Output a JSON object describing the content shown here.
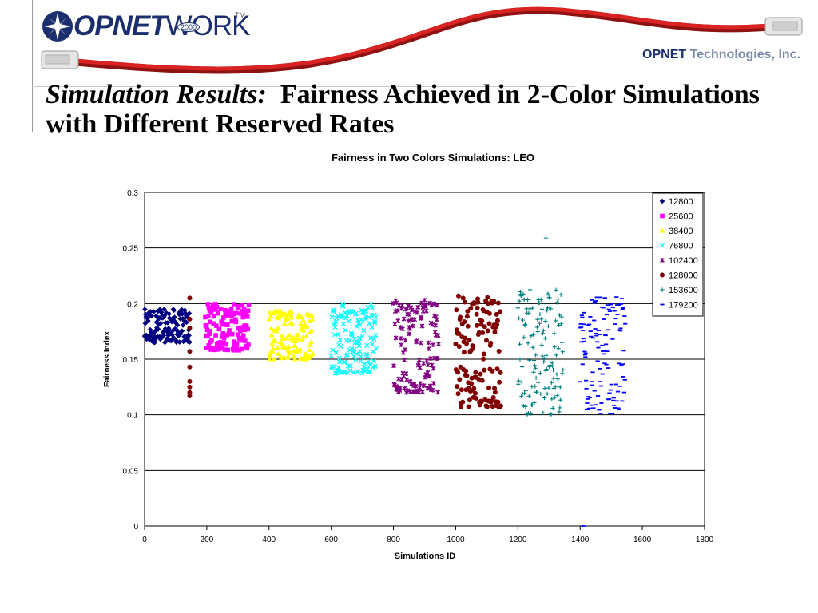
{
  "header": {
    "logo_text_bold": "OPNET",
    "logo_text_light": "WORK",
    "logo_year": "2000",
    "logo_tm": "TM",
    "company_bold": "OPNET",
    "company_rest": "Technologies, Inc."
  },
  "slide": {
    "title_lead": "Simulation Results:",
    "title_rest": "Fairness Achieved in 2-Color Simulations with Different Reserved Rates"
  },
  "chart_data": {
    "type": "scatter",
    "title": "Fairness in Two Colors Simulations: LEO",
    "xlabel": "Simulations ID",
    "ylabel": "Fairness Index",
    "xlim": [
      0,
      1800
    ],
    "ylim": [
      0,
      0.3
    ],
    "xticks": [
      "0",
      "200",
      "400",
      "600",
      "800",
      "1000",
      "1200",
      "1400",
      "1600",
      "1800"
    ],
    "yticks": [
      "0",
      "0.05",
      "0.1",
      "0.15",
      "0.2",
      "0.25",
      "0.3"
    ],
    "grid": "horizontal",
    "legend_position": "top-right",
    "series": [
      {
        "name": "12800",
        "marker": "diamond",
        "color": "#000080",
        "xrange": [
          0,
          145
        ],
        "cluster": [
          0.165,
          0.195
        ],
        "extra": []
      },
      {
        "name": "25600",
        "marker": "square",
        "color": "#ff00ff",
        "xrange": [
          195,
          335
        ],
        "cluster": [
          0.158,
          0.2
        ],
        "extra": []
      },
      {
        "name": "38400",
        "marker": "triangle",
        "color": "#ffff00",
        "xrange": [
          400,
          540
        ],
        "cluster": [
          0.15,
          0.195
        ],
        "extra": []
      },
      {
        "name": "76800",
        "marker": "x",
        "color": "#00ffff",
        "xrange": [
          600,
          745
        ],
        "cluster": [
          0.137,
          0.2
        ],
        "extra": []
      },
      {
        "name": "102400",
        "marker": "star",
        "color": "#800080",
        "xrange": [
          800,
          945
        ],
        "cluster": [
          0.12,
          0.205
        ],
        "extra": []
      },
      {
        "name": "128000",
        "marker": "circle",
        "color": "#800000",
        "xrange": [
          1000,
          1145
        ],
        "cluster": [
          0.107,
          0.207
        ],
        "extra": [
          [
            145,
            0.205
          ],
          [
            145,
            0.186
          ],
          [
            145,
            0.178
          ],
          [
            145,
            0.157
          ],
          [
            145,
            0.143
          ],
          [
            145,
            0.13
          ],
          [
            145,
            0.125
          ],
          [
            145,
            0.12
          ],
          [
            145,
            0.117
          ]
        ]
      },
      {
        "name": "153600",
        "marker": "plus",
        "color": "#008080",
        "xrange": [
          1200,
          1345
        ],
        "cluster": [
          0.1,
          0.213
        ],
        "extra": [
          [
            1290,
            0.259
          ]
        ]
      },
      {
        "name": "179200",
        "marker": "dash",
        "color": "#0000ff",
        "xrange": [
          1400,
          1545
        ],
        "cluster": [
          0.101,
          0.206
        ],
        "extra": [
          [
            1410,
            0.0
          ]
        ]
      }
    ]
  }
}
